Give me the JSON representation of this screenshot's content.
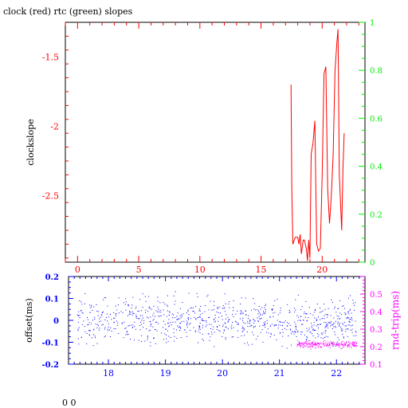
{
  "title": "clock (red) rtc (green) slopes",
  "footer_text": "0 0",
  "colors": {
    "red": "#ff0000",
    "green": "#00ee00",
    "blue": "#0000ff",
    "magenta": "#ff00ff",
    "black": "#000000"
  },
  "chart_data": [
    {
      "type": "line",
      "title": "clock (red) rtc (green) slopes",
      "ylabel": "clockslope",
      "xlim": [
        -1,
        23.5
      ],
      "ylim_left": [
        -2.98,
        -1.25
      ],
      "ylim_right": [
        0,
        1
      ],
      "x_ticks": [
        0,
        5,
        10,
        15,
        20
      ],
      "y_ticks_left": [
        -1.5,
        -2,
        -2.5
      ],
      "y_tick_labels_left": [
        "-1.5",
        "-2",
        "-2.5"
      ],
      "y_ticks_right": [
        0,
        0.2,
        0.4,
        0.6,
        0.8,
        1
      ],
      "y_tick_labels_right": [
        "0",
        "0.2",
        "0.4",
        "0.6",
        "0.8",
        "1"
      ],
      "series": [
        {
          "color": "#ff0000",
          "points": [
            [
              17.45,
              -1.7
            ],
            [
              17.52,
              -2.45
            ],
            [
              17.6,
              -2.85
            ],
            [
              17.8,
              -2.8
            ],
            [
              18.0,
              -2.8
            ],
            [
              18.1,
              -2.85
            ],
            [
              18.2,
              -2.78
            ],
            [
              18.3,
              -2.92
            ],
            [
              18.45,
              -2.82
            ],
            [
              18.55,
              -2.82
            ],
            [
              18.7,
              -2.88
            ],
            [
              18.8,
              -2.97
            ],
            [
              18.9,
              -2.82
            ],
            [
              19.0,
              -2.95
            ],
            [
              19.1,
              -2.2
            ],
            [
              19.25,
              -2.12
            ],
            [
              19.4,
              -1.96
            ],
            [
              19.55,
              -2.85
            ],
            [
              19.7,
              -2.9
            ],
            [
              19.85,
              -2.88
            ],
            [
              20.0,
              -2.35
            ],
            [
              20.15,
              -1.62
            ],
            [
              20.3,
              -1.57
            ],
            [
              20.45,
              -2.45
            ],
            [
              20.6,
              -2.7
            ],
            [
              20.75,
              -2.5
            ],
            [
              20.9,
              -2.2
            ],
            [
              21.05,
              -1.6
            ],
            [
              21.2,
              -1.4
            ],
            [
              21.3,
              -1.3
            ],
            [
              21.4,
              -2.35
            ],
            [
              21.5,
              -2.55
            ],
            [
              21.6,
              -2.75
            ],
            [
              21.7,
              -2.3
            ],
            [
              21.8,
              -2.05
            ]
          ]
        }
      ]
    },
    {
      "type": "scatter",
      "ylabel_left": "offset(ms)",
      "ylabel_right": "rnd-trip(ms)",
      "xlim": [
        17.3,
        22.5
      ],
      "ylim_left": [
        -0.2,
        0.2
      ],
      "ylim_right": [
        0.1,
        0.6
      ],
      "x_ticks": [
        18,
        19,
        20,
        21,
        22
      ],
      "y_ticks_left": [
        -0.2,
        -0.1,
        0,
        0.1,
        0.2
      ],
      "y_tick_labels_left": [
        "-0.2",
        "-0.1",
        "0",
        "0.1",
        "0.2"
      ],
      "y_ticks_right": [
        0.1,
        0.2,
        0.3,
        0.4,
        0.5
      ],
      "y_tick_labels_right": [
        "0.1",
        "0.2",
        "0.3",
        "0.4",
        "0.5"
      ],
      "series": [
        {
          "color": "#0000ff",
          "axis": "left",
          "x_range": [
            17.45,
            22.35
          ],
          "center": 0.0,
          "spread": 0.05,
          "count": 900
        },
        {
          "color": "#ff00ff",
          "axis": "right",
          "x_range": [
            21.3,
            22.35
          ],
          "center": 0.215,
          "spread": 0.01,
          "count": 260
        }
      ]
    }
  ]
}
